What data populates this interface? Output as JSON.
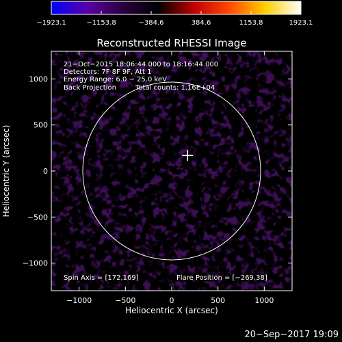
{
  "chart_data": {
    "type": "heatmap",
    "title": "Reconstructed RHESSI Image",
    "xlabel": "Heliocentric X (arcsec)",
    "ylabel": "Heliocentric Y (arcsec)",
    "xlim": [
      -1300,
      1300
    ],
    "ylim": [
      -1300,
      1300
    ],
    "x_ticks": [
      "−1000",
      "−500",
      "0",
      "500",
      "1000"
    ],
    "y_ticks": [
      "−1000",
      "−500",
      "0",
      "500",
      "1000"
    ],
    "x_tick_values": [
      -1000,
      -500,
      0,
      500,
      1000
    ],
    "y_tick_values": [
      -1000,
      -500,
      0,
      500,
      1000
    ],
    "colorbar": {
      "range": [
        -1923.1,
        1923.1
      ],
      "tick_labels": [
        "−1923.1",
        "−1153.8",
        "−384.6",
        "384.6",
        "1153.8",
        "1923.1"
      ],
      "tick_values": [
        -1923.1,
        -1153.8,
        -384.6,
        384.6,
        1153.8,
        1923.1
      ],
      "colors": [
        "#0000ff",
        "#5a00a8",
        "#2a0040",
        "#000000",
        "#c00000",
        "#ff4800",
        "#ffd000",
        "#ffffff"
      ]
    },
    "annotations": {
      "time_range": "21−Oct−2015 18:06:44.000 to 18:16:44.000",
      "detectors": "Detectors: 7F 8F 9F, Att 1",
      "energy_range": "Energy Range: 6.0 − 25.0 keV",
      "method": "Back Projection",
      "total_counts": "Total counts: 1.16E+04",
      "spin_axis": "Spin Axis = [172,169]",
      "flare_position": "Flare Position = [−269,38]"
    },
    "solar_limb_radius": 960,
    "spin_axis": [
      172,
      169
    ],
    "grid": false
  },
  "footer": {
    "date_stamp": "20−Sep−2017 19:09"
  }
}
